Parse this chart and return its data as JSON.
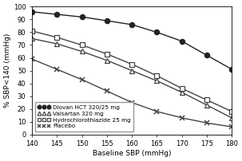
{
  "title": "",
  "xlabel": "Baseline SBP (mmHg)",
  "ylabel": "% SBP<140 (mmHg)",
  "xlim": [
    140,
    180
  ],
  "ylim": [
    0,
    100
  ],
  "xticks": [
    140,
    145,
    150,
    155,
    160,
    165,
    170,
    175,
    180
  ],
  "yticks": [
    0,
    10,
    20,
    30,
    40,
    50,
    60,
    70,
    80,
    90,
    100
  ],
  "series": [
    {
      "label": "Diovan HCT 320/25 mg",
      "x_vals": [
        140,
        145,
        150,
        155,
        160,
        165,
        170,
        175,
        180
      ],
      "y_vals": [
        96,
        94,
        92,
        89,
        86,
        80,
        73,
        62,
        51
      ],
      "color": "#222222",
      "marker": "o",
      "markersize": 4.5,
      "markerfacecolor": "#222222",
      "markeredgecolor": "#222222",
      "linewidth": 1.0
    },
    {
      "label": "Valsartan 320 mg",
      "x_vals": [
        140,
        145,
        150,
        155,
        160,
        165,
        170,
        175,
        180
      ],
      "y_vals": [
        75,
        71,
        65,
        58,
        50,
        42,
        33,
        23,
        13
      ],
      "color": "#444444",
      "marker": "^",
      "markersize": 4.5,
      "markerfacecolor": "white",
      "markeredgecolor": "#444444",
      "linewidth": 1.0
    },
    {
      "label": "Hydrochlorothiazide 25 mg",
      "x_vals": [
        140,
        145,
        150,
        155,
        160,
        165,
        170,
        175,
        180
      ],
      "y_vals": [
        81,
        76,
        70,
        63,
        55,
        46,
        36,
        27,
        18
      ],
      "color": "#444444",
      "marker": "s",
      "markersize": 4.0,
      "markerfacecolor": "white",
      "markeredgecolor": "#444444",
      "linewidth": 1.0
    },
    {
      "label": "Placebo",
      "x_vals": [
        140,
        145,
        150,
        155,
        160,
        165,
        170,
        175,
        180
      ],
      "y_vals": [
        59,
        51,
        43,
        34,
        25,
        18,
        13,
        9,
        6
      ],
      "color": "#444444",
      "marker": "x",
      "markersize": 4.0,
      "markerfacecolor": "#444444",
      "markeredgecolor": "#444444",
      "linewidth": 1.0
    }
  ],
  "legend_fontsize": 5.2,
  "axis_fontsize": 6.5,
  "tick_fontsize": 6.0
}
